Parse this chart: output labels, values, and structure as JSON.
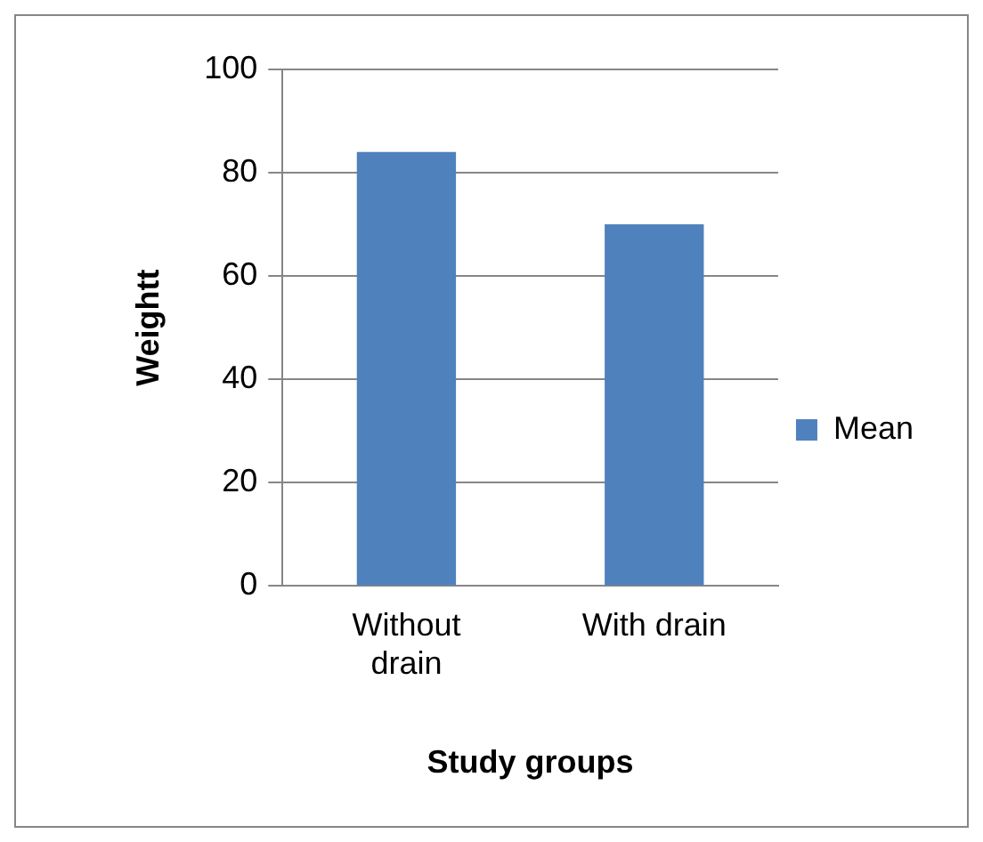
{
  "chart_data": {
    "type": "bar",
    "xlabel": "Study groups",
    "ylabel": "Weightt",
    "categories": [
      "Without drain",
      "With drain"
    ],
    "series": [
      {
        "name": "Mean",
        "color": "#4f81bd",
        "values": [
          84,
          70
        ]
      }
    ],
    "ylim": [
      0,
      100
    ],
    "yticks": [
      0,
      20,
      40,
      60,
      80,
      100
    ],
    "grid": "y",
    "legend": "right"
  }
}
